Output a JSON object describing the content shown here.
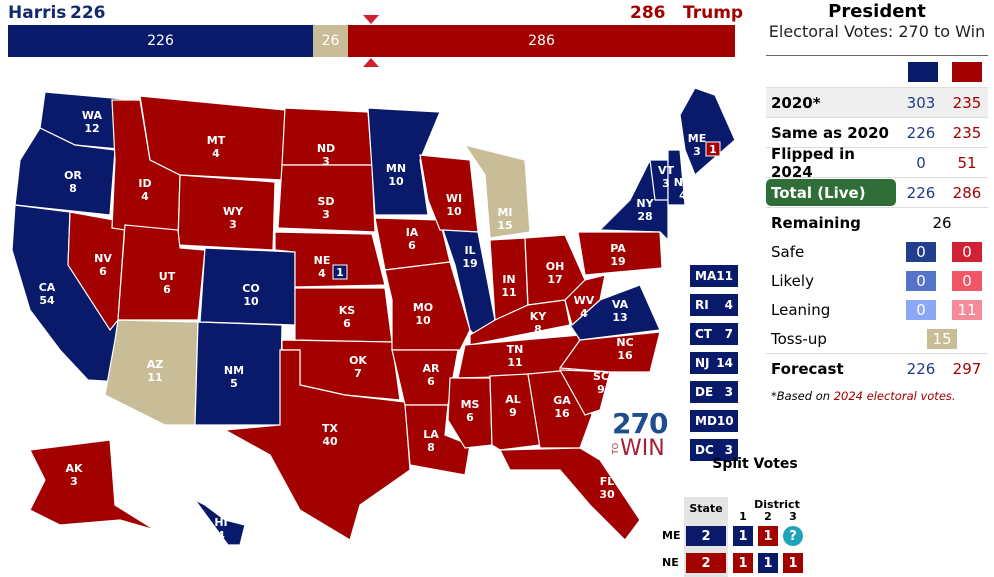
{
  "header": {
    "left_name": "Harris",
    "left_ev": "226",
    "right_ev": "286",
    "right_name": "Trump",
    "bar": {
      "dem": "226",
      "toss": "26",
      "rep": "286"
    }
  },
  "colors": {
    "dem": "#0a1a6b",
    "rep": "#a30000",
    "toss": "#c9bd98",
    "total_live": "#2f6e36"
  },
  "panel": {
    "title": "President",
    "subtitle": "Electoral Votes: 270 to Win",
    "rows": [
      {
        "label": "2020*",
        "dem": "303",
        "rep": "235"
      },
      {
        "label": "Same as 2020",
        "dem": "226",
        "rep": "235"
      },
      {
        "label": "Flipped in 2024",
        "dem": "0",
        "rep": "51"
      },
      {
        "label": "Total (Live)",
        "dem": "226",
        "rep": "286"
      }
    ],
    "remaining": {
      "label": "Remaining",
      "value": "26"
    },
    "ratings": [
      {
        "label": "Safe",
        "dem": "0",
        "rep": "0",
        "dc": "#223f8f",
        "rc": "#cf2232"
      },
      {
        "label": "Likely",
        "dem": "0",
        "rep": "0",
        "dc": "#5573c8",
        "rc": "#f25565"
      },
      {
        "label": "Leaning",
        "dem": "0",
        "rep": "11",
        "dc": "#8aa8f5",
        "rc": "#f58a98"
      }
    ],
    "tossup": {
      "label": "Toss-up",
      "value": "15"
    },
    "forecast": {
      "label": "Forecast",
      "dem": "226",
      "rep": "297"
    },
    "footnote_a": "*Based on ",
    "footnote_b": "2024 electoral votes."
  },
  "states": [
    {
      "abbr": "WA",
      "ev": "12",
      "s": "D"
    },
    {
      "abbr": "OR",
      "ev": "8",
      "s": "D"
    },
    {
      "abbr": "CA",
      "ev": "54",
      "s": "D"
    },
    {
      "abbr": "NV",
      "ev": "6",
      "s": "R"
    },
    {
      "abbr": "ID",
      "ev": "4",
      "s": "R"
    },
    {
      "abbr": "MT",
      "ev": "4",
      "s": "R"
    },
    {
      "abbr": "WY",
      "ev": "3",
      "s": "R"
    },
    {
      "abbr": "UT",
      "ev": "6",
      "s": "R"
    },
    {
      "abbr": "CO",
      "ev": "10",
      "s": "D"
    },
    {
      "abbr": "AZ",
      "ev": "11",
      "s": "T"
    },
    {
      "abbr": "NM",
      "ev": "5",
      "s": "D"
    },
    {
      "abbr": "ND",
      "ev": "3",
      "s": "R"
    },
    {
      "abbr": "SD",
      "ev": "3",
      "s": "R"
    },
    {
      "abbr": "NE",
      "ev": "4",
      "s": "R"
    },
    {
      "abbr": "KS",
      "ev": "6",
      "s": "R"
    },
    {
      "abbr": "OK",
      "ev": "7",
      "s": "R"
    },
    {
      "abbr": "TX",
      "ev": "40",
      "s": "R"
    },
    {
      "abbr": "MN",
      "ev": "10",
      "s": "D"
    },
    {
      "abbr": "IA",
      "ev": "6",
      "s": "R"
    },
    {
      "abbr": "MO",
      "ev": "10",
      "s": "R"
    },
    {
      "abbr": "AR",
      "ev": "6",
      "s": "R"
    },
    {
      "abbr": "LA",
      "ev": "8",
      "s": "R"
    },
    {
      "abbr": "WI",
      "ev": "10",
      "s": "R"
    },
    {
      "abbr": "IL",
      "ev": "19",
      "s": "D"
    },
    {
      "abbr": "MI",
      "ev": "15",
      "s": "T"
    },
    {
      "abbr": "IN",
      "ev": "11",
      "s": "R"
    },
    {
      "abbr": "OH",
      "ev": "17",
      "s": "R"
    },
    {
      "abbr": "KY",
      "ev": "8",
      "s": "R"
    },
    {
      "abbr": "TN",
      "ev": "11",
      "s": "R"
    },
    {
      "abbr": "MS",
      "ev": "6",
      "s": "R"
    },
    {
      "abbr": "AL",
      "ev": "9",
      "s": "R"
    },
    {
      "abbr": "GA",
      "ev": "16",
      "s": "R"
    },
    {
      "abbr": "FL",
      "ev": "30",
      "s": "R"
    },
    {
      "abbr": "SC",
      "ev": "9",
      "s": "R"
    },
    {
      "abbr": "NC",
      "ev": "16",
      "s": "R"
    },
    {
      "abbr": "VA",
      "ev": "13",
      "s": "D"
    },
    {
      "abbr": "WV",
      "ev": "4",
      "s": "R"
    },
    {
      "abbr": "PA",
      "ev": "19",
      "s": "R"
    },
    {
      "abbr": "NY",
      "ev": "28",
      "s": "D"
    },
    {
      "abbr": "VT",
      "ev": "3",
      "s": "D"
    },
    {
      "abbr": "NH",
      "ev": "4",
      "s": "D"
    },
    {
      "abbr": "ME",
      "ev": "3",
      "s": "D"
    },
    {
      "abbr": "AK",
      "ev": "3",
      "s": "R"
    },
    {
      "abbr": "HI",
      "ev": "4",
      "s": "D"
    }
  ],
  "district_badges": {
    "ME": "1",
    "NE": "1"
  },
  "small_states": [
    {
      "abbr": "MA",
      "ev": "11"
    },
    {
      "abbr": "RI",
      "ev": "4"
    },
    {
      "abbr": "CT",
      "ev": "7"
    },
    {
      "abbr": "NJ",
      "ev": "14"
    },
    {
      "abbr": "DE",
      "ev": "3"
    },
    {
      "abbr": "MD",
      "ev": "10"
    },
    {
      "abbr": "DC",
      "ev": "3"
    }
  ],
  "logo": {
    "top": "270",
    "to": "TO",
    "win": "WIN"
  },
  "split": {
    "title": "Split Votes",
    "state_header": "State",
    "district_header": "District",
    "districts": [
      "1",
      "2",
      "3"
    ],
    "rows": [
      {
        "label": "ME",
        "state": "2",
        "sc": "D",
        "d": [
          {
            "v": "1",
            "c": "D"
          },
          {
            "v": "1",
            "c": "R"
          },
          {
            "v": "?",
            "c": "Q"
          }
        ]
      },
      {
        "label": "NE",
        "state": "2",
        "sc": "R",
        "d": [
          {
            "v": "1",
            "c": "R"
          },
          {
            "v": "1",
            "c": "D"
          },
          {
            "v": "1",
            "c": "R"
          }
        ]
      }
    ]
  }
}
